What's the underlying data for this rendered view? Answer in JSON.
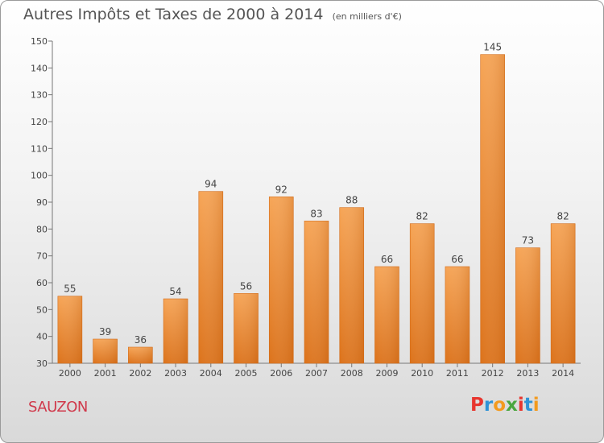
{
  "header": {
    "title": "Autres Impôts et Taxes de 2000 à 2014",
    "unit": "(en milliers d'€)"
  },
  "commune": "SAUZON",
  "logo": {
    "letters": [
      "P",
      "r",
      "o",
      "x",
      "i",
      "t",
      "i"
    ],
    "colors": [
      "#e8352e",
      "#2f93d6",
      "#f39a1e",
      "#4aa63f",
      "#e8352e",
      "#2f93d6",
      "#f39a1e"
    ]
  },
  "chart_data": {
    "type": "bar",
    "title": "Autres Impôts et Taxes de 2000 à 2014",
    "subtitle": "(en milliers d'€)",
    "xlabel": "",
    "ylabel": "",
    "categories": [
      "2000",
      "2001",
      "2002",
      "2003",
      "2004",
      "2005",
      "2006",
      "2007",
      "2008",
      "2009",
      "2010",
      "2011",
      "2012",
      "2013",
      "2014"
    ],
    "values": [
      55,
      39,
      36,
      54,
      94,
      56,
      92,
      83,
      88,
      66,
      82,
      66,
      145,
      73,
      82
    ],
    "ylim": [
      30,
      150
    ],
    "yticks": [
      30,
      40,
      50,
      60,
      70,
      80,
      90,
      100,
      110,
      120,
      130,
      140,
      150
    ],
    "bar_color": "#f0923a",
    "grid": false,
    "legend": "none"
  }
}
